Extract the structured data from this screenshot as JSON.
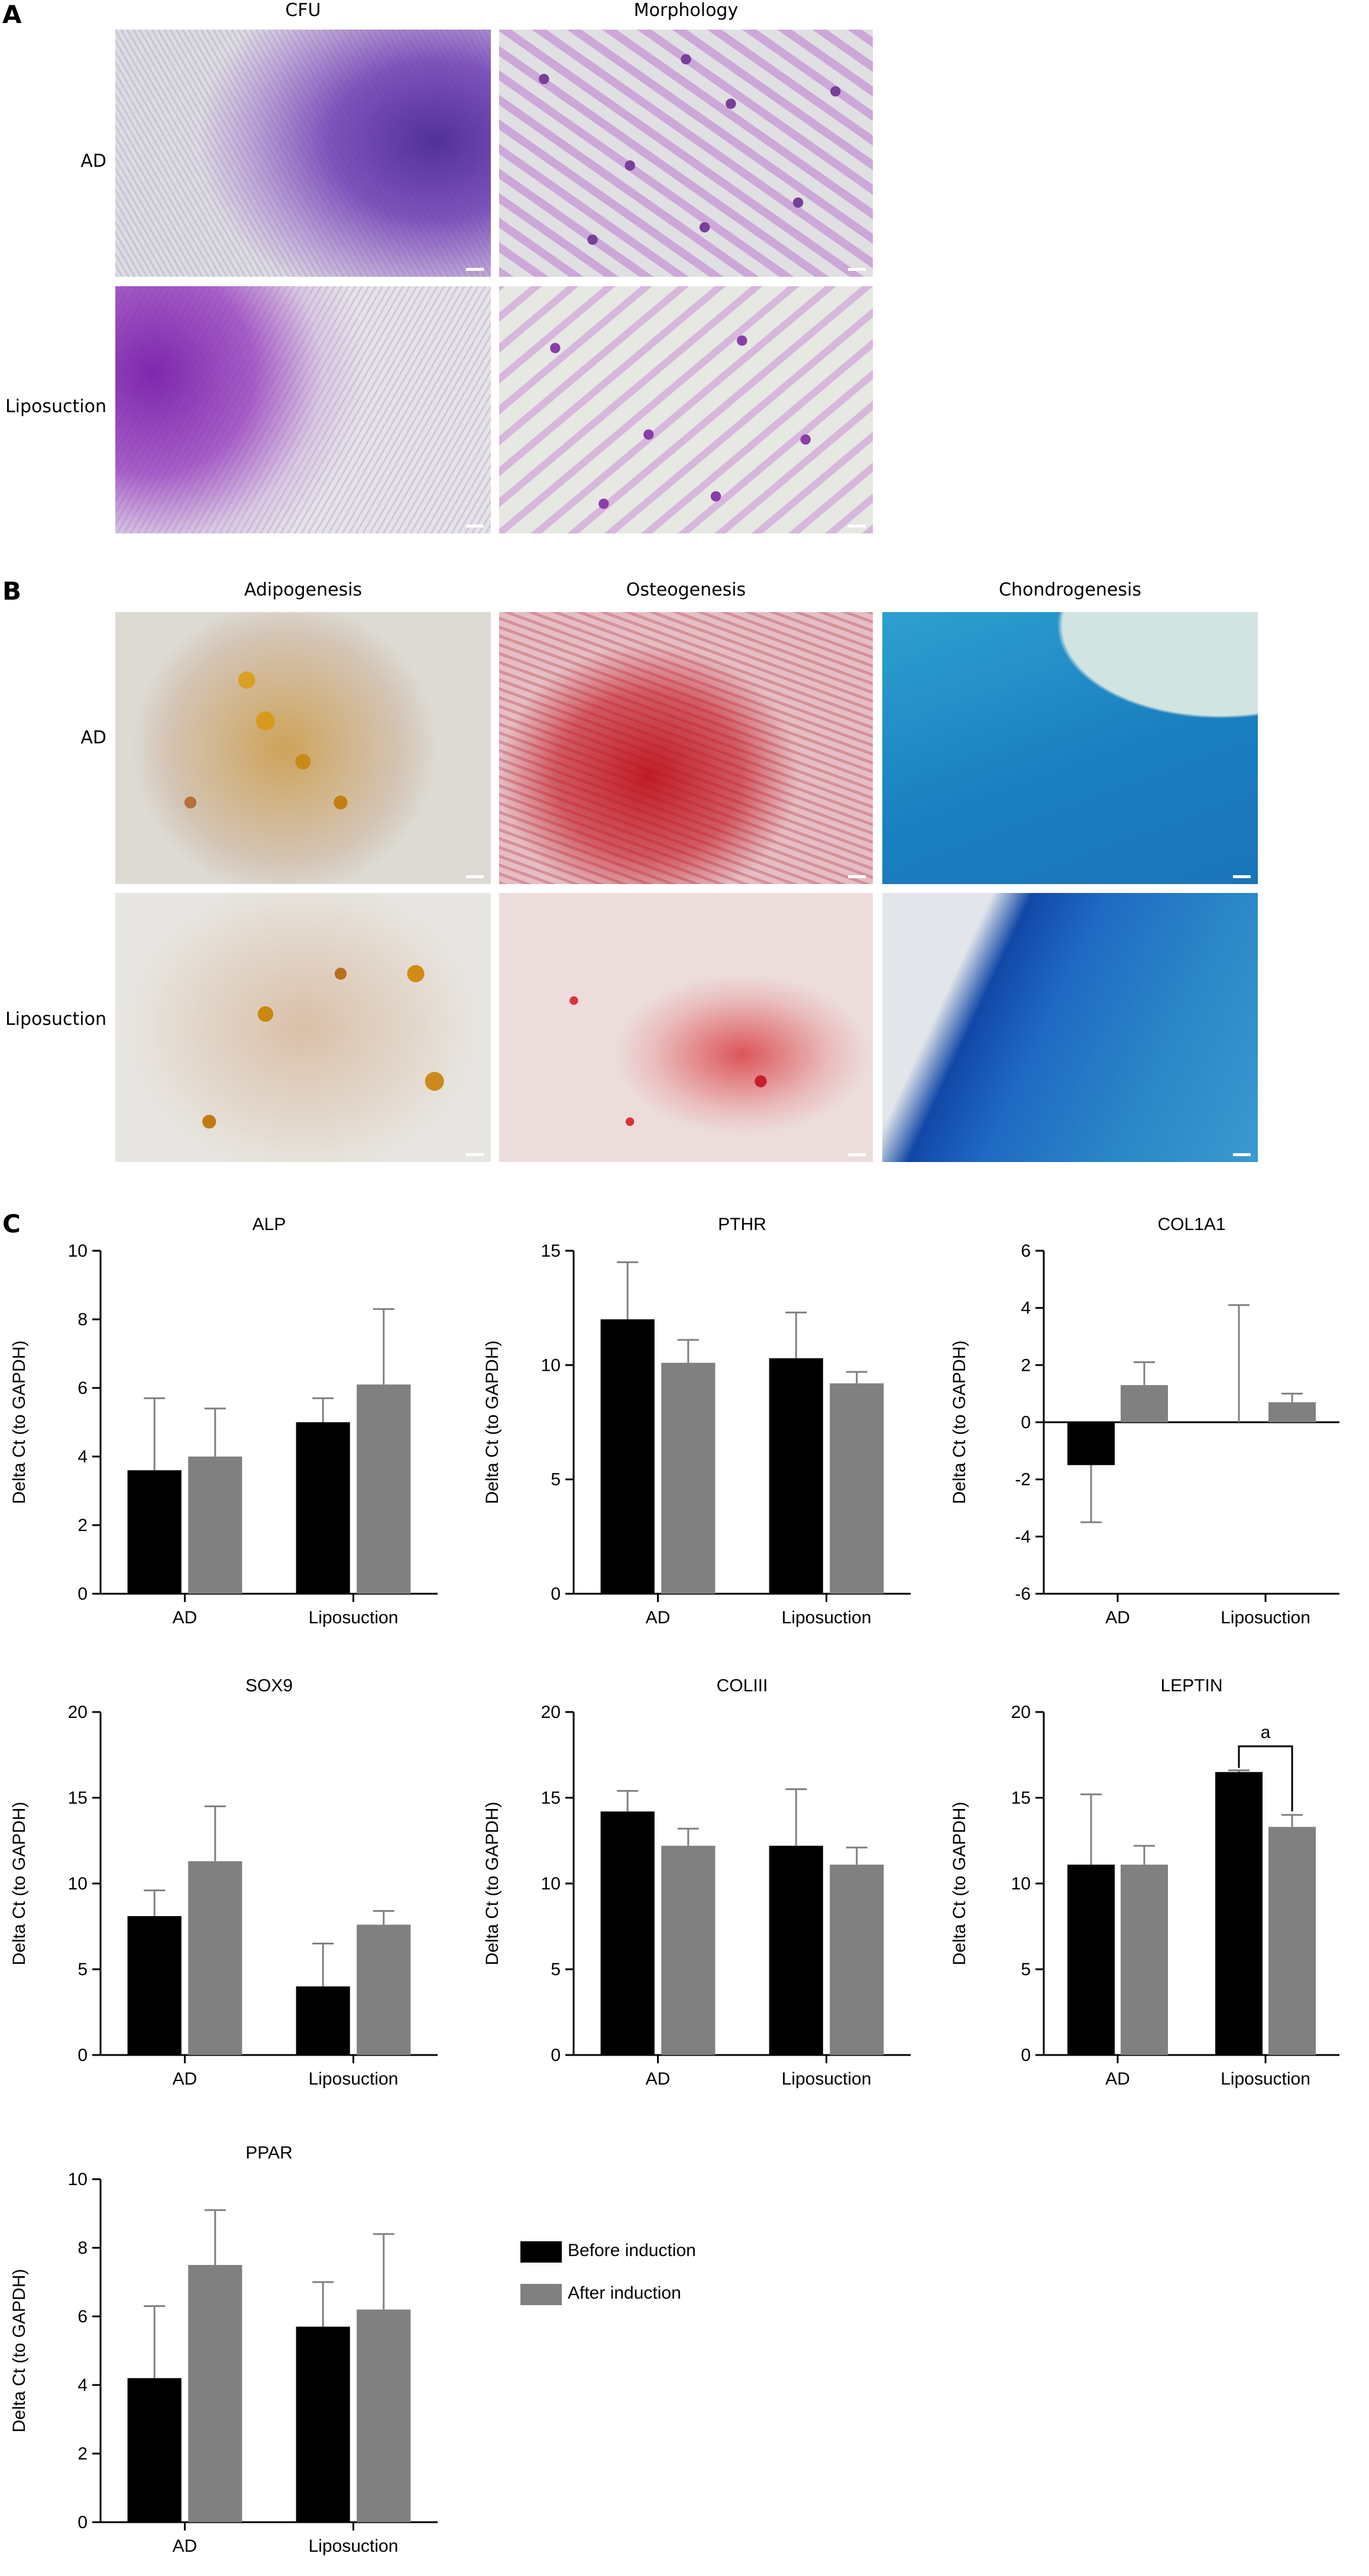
{
  "panel_labels": {
    "a": "A",
    "b": "B",
    "c": "C"
  },
  "panel_a": {
    "columns": [
      "CFU",
      "Morphology"
    ],
    "rows": [
      "AD",
      "Liposuction"
    ]
  },
  "panel_b": {
    "columns": [
      "Adipogenesis",
      "Osteogenesis",
      "Chondrogenesis"
    ],
    "rows": [
      "AD",
      "Liposuction"
    ]
  },
  "legend": {
    "items": [
      {
        "label": "Before induction",
        "color": "#000000"
      },
      {
        "label": "After induction",
        "color": "#808080"
      }
    ]
  },
  "colors": {
    "before": "#000000",
    "after": "#808080",
    "error": "#808080"
  },
  "chart_data": [
    {
      "type": "bar",
      "title": "ALP",
      "ylabel": "Delta Ct (to GAPDH)",
      "categories": [
        "AD",
        "Liposuction"
      ],
      "ylim": [
        0,
        10
      ],
      "yticks": [
        0,
        2,
        4,
        6,
        8,
        10
      ],
      "yticklabels": [
        "0",
        "2",
        "4",
        "6",
        "8",
        "10"
      ],
      "series": [
        {
          "name": "Before induction",
          "values": [
            3.6,
            5.0
          ],
          "errors": [
            2.1,
            0.7
          ]
        },
        {
          "name": "After induction",
          "values": [
            4.0,
            6.1
          ],
          "errors": [
            1.4,
            2.2
          ]
        }
      ],
      "annotations": []
    },
    {
      "type": "bar",
      "title": "PTHR",
      "ylabel": "Delta Ct (to GAPDH)",
      "categories": [
        "AD",
        "Liposuction"
      ],
      "ylim": [
        0,
        15
      ],
      "yticks": [
        0,
        5,
        10,
        15
      ],
      "yticklabels": [
        "0",
        "5",
        "10",
        "15"
      ],
      "series": [
        {
          "name": "Before induction",
          "values": [
            12.0,
            10.3
          ],
          "errors": [
            2.5,
            2.0
          ]
        },
        {
          "name": "After induction",
          "values": [
            10.1,
            9.2
          ],
          "errors": [
            1.0,
            0.5
          ]
        }
      ],
      "annotations": []
    },
    {
      "type": "bar",
      "title": "COL1A1",
      "ylabel": "Delta Ct (to GAPDH)",
      "categories": [
        "AD",
        "Liposuction"
      ],
      "ylim": [
        -6,
        6
      ],
      "yticks": [
        -6,
        -4,
        -2,
        0,
        2,
        4,
        6
      ],
      "yticklabels": [
        "-6",
        "-4",
        "-2",
        "0",
        "2",
        "4",
        "6"
      ],
      "series": [
        {
          "name": "Before induction",
          "values": [
            -1.5,
            0.0
          ],
          "errors": [
            2.0,
            4.1
          ]
        },
        {
          "name": "After induction",
          "values": [
            1.3,
            0.7
          ],
          "errors": [
            0.8,
            0.3
          ]
        }
      ],
      "annotations": []
    },
    {
      "type": "bar",
      "title": "SOX9",
      "ylabel": "Delta Ct (to GAPDH)",
      "categories": [
        "AD",
        "Liposuction"
      ],
      "ylim": [
        0,
        20
      ],
      "yticks": [
        0,
        5,
        10,
        15,
        20
      ],
      "yticklabels": [
        "0",
        "5",
        "10",
        "15",
        "20"
      ],
      "series": [
        {
          "name": "Before induction",
          "values": [
            8.1,
            4.0
          ],
          "errors": [
            1.5,
            2.5
          ]
        },
        {
          "name": "After induction",
          "values": [
            11.3,
            7.6
          ],
          "errors": [
            3.2,
            0.8
          ]
        }
      ],
      "annotations": []
    },
    {
      "type": "bar",
      "title": "COLIII",
      "ylabel": "Delta Ct (to GAPDH)",
      "categories": [
        "AD",
        "Liposuction"
      ],
      "ylim": [
        0,
        20
      ],
      "yticks": [
        0,
        5,
        10,
        15,
        20
      ],
      "yticklabels": [
        "0",
        "5",
        "10",
        "15",
        "20"
      ],
      "series": [
        {
          "name": "Before induction",
          "values": [
            14.2,
            12.2
          ],
          "errors": [
            1.2,
            3.3
          ]
        },
        {
          "name": "After induction",
          "values": [
            12.2,
            11.1
          ],
          "errors": [
            1.0,
            1.0
          ]
        }
      ],
      "annotations": []
    },
    {
      "type": "bar",
      "title": "LEPTIN",
      "ylabel": "Delta Ct (to GAPDH)",
      "categories": [
        "AD",
        "Liposuction"
      ],
      "ylim": [
        0,
        20
      ],
      "yticks": [
        0,
        5,
        10,
        15,
        20
      ],
      "yticklabels": [
        "0",
        "5",
        "10",
        "15",
        "20"
      ],
      "series": [
        {
          "name": "Before induction",
          "values": [
            11.1,
            16.5
          ],
          "errors": [
            4.1,
            0.1
          ]
        },
        {
          "name": "After induction",
          "values": [
            11.1,
            13.3
          ],
          "errors": [
            1.1,
            0.7
          ]
        }
      ],
      "annotations": [
        {
          "text": "a",
          "category": "Liposuction",
          "y": 18.0
        }
      ]
    },
    {
      "type": "bar",
      "title": "PPAR",
      "ylabel": "Delta Ct (to GAPDH)",
      "categories": [
        "AD",
        "Liposuction"
      ],
      "ylim": [
        0,
        10
      ],
      "yticks": [
        0,
        2,
        4,
        6,
        8,
        10
      ],
      "yticklabels": [
        "0",
        "2",
        "4",
        "6",
        "8",
        "10"
      ],
      "series": [
        {
          "name": "Before induction",
          "values": [
            4.2,
            5.7
          ],
          "errors": [
            2.1,
            1.3
          ]
        },
        {
          "name": "After induction",
          "values": [
            7.5,
            6.2
          ],
          "errors": [
            1.6,
            2.2
          ]
        }
      ],
      "annotations": []
    }
  ]
}
